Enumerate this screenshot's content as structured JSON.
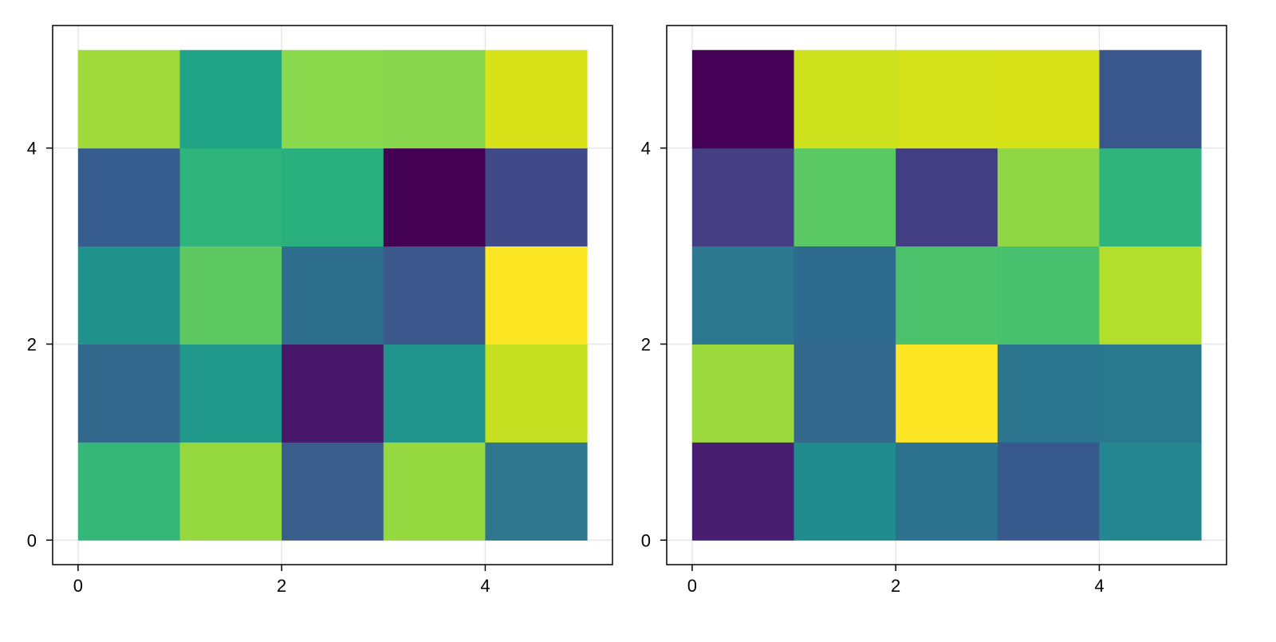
{
  "chart_data": [
    {
      "type": "heatmap",
      "title": "",
      "xlabel": "",
      "ylabel": "",
      "x_edges": [
        0,
        1,
        2,
        3,
        4,
        5
      ],
      "y_edges": [
        0,
        1,
        2,
        3,
        4,
        5
      ],
      "xlim": [
        -0.25,
        5.25
      ],
      "ylim": [
        -0.25,
        5.25
      ],
      "xticks": [
        0,
        2,
        4
      ],
      "yticks": [
        0,
        2,
        4
      ],
      "grid": true,
      "colormap": "viridis",
      "rows_bottom_to_top": [
        [
          "#35b779",
          "#95d840",
          "#3a5e8c",
          "#95d840",
          "#2d768e"
        ],
        [
          "#33688d",
          "#21998a",
          "#481769",
          "#21958b",
          "#c5e021"
        ],
        [
          "#21928c",
          "#5ec962",
          "#2e6f8e",
          "#3b578b",
          "#fde725"
        ],
        [
          "#365d8d",
          "#2fb47c",
          "#2aaf7f",
          "#440154",
          "#404a88"
        ],
        [
          "#9fda3a",
          "#20a386",
          "#8ad84b",
          "#87d54c",
          "#d8e219"
        ]
      ]
    },
    {
      "type": "heatmap",
      "title": "",
      "xlabel": "",
      "ylabel": "",
      "x_edges": [
        0,
        1,
        2,
        3,
        4,
        5
      ],
      "y_edges": [
        0,
        1,
        2,
        3,
        4,
        5
      ],
      "xlim": [
        -0.25,
        5.25
      ],
      "ylim": [
        -0.25,
        5.25
      ],
      "xticks": [
        0,
        2,
        4
      ],
      "yticks": [
        0,
        2,
        4
      ],
      "grid": true,
      "colormap": "viridis",
      "rows_bottom_to_top": [
        [
          "#481f70",
          "#228b8d",
          "#2c728e",
          "#38598c",
          "#24868e"
        ],
        [
          "#9bd93c",
          "#34698d",
          "#fde725",
          "#2b758e",
          "#2a788e"
        ],
        [
          "#2c788e",
          "#2f6b8e",
          "#4cc26c",
          "#48c16e",
          "#b4de2c"
        ],
        [
          "#463e85",
          "#5ac864",
          "#433d84",
          "#8fd744",
          "#2fb47c"
        ],
        [
          "#450256",
          "#cde11d",
          "#d4e21a",
          "#d8e219",
          "#39578c"
        ]
      ]
    }
  ]
}
